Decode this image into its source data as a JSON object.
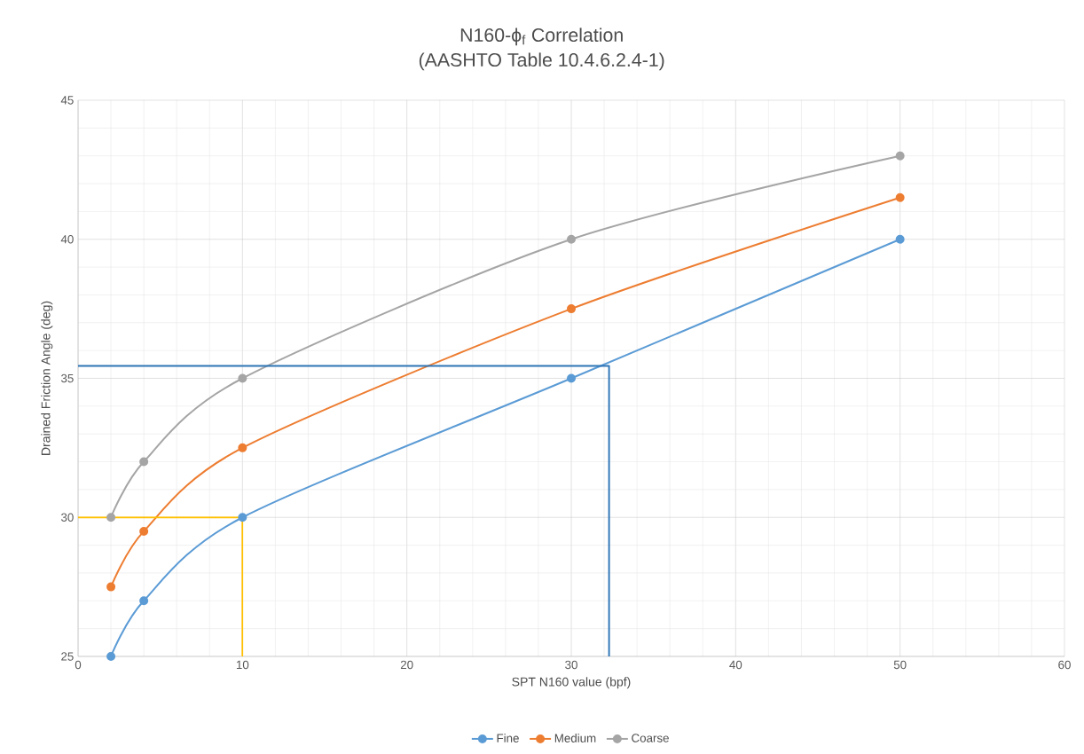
{
  "chart_data": {
    "type": "line",
    "title": "N160-ϕ$_{f}$ Correlation",
    "subtitle": "(AASHTO Table 10.4.6.2.4-1)",
    "xlabel": "SPT N160 value (bpf)",
    "ylabel": "Drained Friction Angle (deg)",
    "xlim": [
      0,
      60
    ],
    "xticks": [
      0,
      10,
      20,
      30,
      40,
      50,
      60
    ],
    "ylim": [
      25,
      45
    ],
    "yticks": [
      25,
      30,
      35,
      40,
      45
    ],
    "grid": true,
    "legend": "bottom",
    "marker": "circle",
    "series": [
      {
        "name": "Fine",
        "color": "#5b9bd5",
        "x": [
          2,
          4,
          10,
          30,
          50
        ],
        "values": [
          25,
          27,
          30,
          35,
          40
        ]
      },
      {
        "name": "Medium",
        "color": "#ed7d31",
        "x": [
          2,
          4,
          10,
          30,
          50
        ],
        "values": [
          27.5,
          29.5,
          32.5,
          37.5,
          41.5
        ]
      },
      {
        "name": "Coarse",
        "color": "#a5a5a5",
        "x": [
          2,
          4,
          10,
          30,
          50
        ],
        "values": [
          30,
          32,
          35,
          40,
          43
        ]
      },
      {
        "color": "#ffc000",
        "marker": "none",
        "x": [
          0,
          10,
          10
        ],
        "values": [
          30,
          30,
          25
        ]
      },
      {
        "color": "#2e75b6",
        "marker": "none",
        "x": [
          0,
          32.3,
          32.3
        ],
        "values": [
          35.45,
          35.45,
          25
        ]
      }
    ]
  }
}
